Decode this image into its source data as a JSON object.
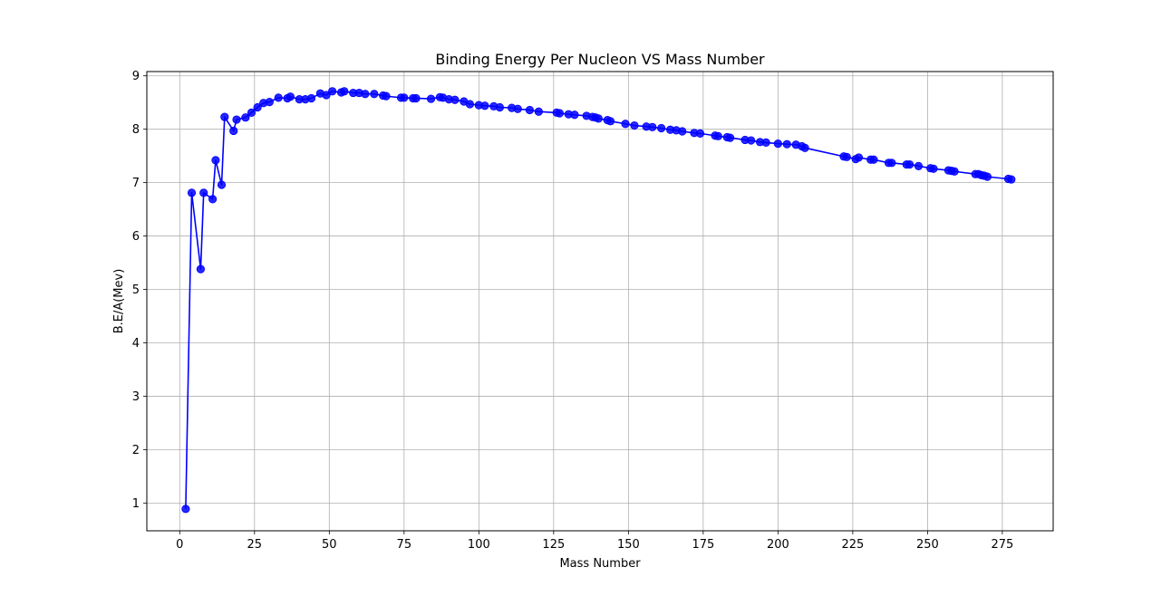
{
  "chart_data": {
    "type": "line",
    "title": "Binding Energy Per Nucleon VS Mass Number",
    "xlabel": "Mass Number",
    "ylabel": "B.E/A(Mev)",
    "xlim": [
      -11,
      292
    ],
    "ylim": [
      0.48,
      9.08
    ],
    "xticks": [
      0,
      25,
      50,
      75,
      100,
      125,
      150,
      175,
      200,
      225,
      250,
      275
    ],
    "yticks": [
      1,
      2,
      3,
      4,
      5,
      6,
      7,
      8,
      9
    ],
    "grid": true,
    "colors": {
      "series": "#0000ff",
      "grid": "#b0b0b0",
      "axes": "#000000"
    },
    "series": [
      {
        "marker": "circle",
        "x": [
          2,
          4,
          7,
          8,
          11,
          12,
          14,
          15,
          18,
          19,
          22,
          24,
          26,
          28,
          30,
          33,
          36,
          37,
          40,
          42,
          44,
          47,
          49,
          51,
          54,
          55,
          58,
          60,
          62,
          65,
          68,
          69,
          74,
          75,
          78,
          79,
          84,
          87,
          88,
          90,
          92,
          95,
          97,
          100,
          102,
          105,
          107,
          111,
          113,
          117,
          120,
          126,
          127,
          130,
          132,
          136,
          138,
          139,
          140,
          143,
          144,
          149,
          152,
          156,
          158,
          161,
          164,
          166,
          168,
          172,
          174,
          179,
          180,
          183,
          184,
          189,
          191,
          194,
          196,
          200,
          203,
          206,
          208,
          209,
          222,
          223,
          226,
          227,
          231,
          232,
          237,
          238,
          243,
          244,
          247,
          251,
          252,
          257,
          258,
          259,
          266,
          267,
          268,
          269,
          270,
          277,
          278
        ],
        "y": [
          0.89,
          6.81,
          5.38,
          6.81,
          6.69,
          7.42,
          6.96,
          8.23,
          7.97,
          8.18,
          8.22,
          8.31,
          8.41,
          8.49,
          8.51,
          8.59,
          8.58,
          8.61,
          8.56,
          8.56,
          8.58,
          8.67,
          8.64,
          8.71,
          8.69,
          8.71,
          8.68,
          8.68,
          8.66,
          8.66,
          8.63,
          8.62,
          8.59,
          8.59,
          8.58,
          8.58,
          8.57,
          8.6,
          8.59,
          8.56,
          8.55,
          8.52,
          8.47,
          8.45,
          8.44,
          8.43,
          8.41,
          8.4,
          8.38,
          8.36,
          8.33,
          8.31,
          8.3,
          8.28,
          8.27,
          8.25,
          8.23,
          8.22,
          8.2,
          8.17,
          8.15,
          8.1,
          8.07,
          8.05,
          8.04,
          8.02,
          7.99,
          7.98,
          7.96,
          7.93,
          7.92,
          7.88,
          7.87,
          7.85,
          7.84,
          7.8,
          7.79,
          7.76,
          7.75,
          7.73,
          7.72,
          7.71,
          7.68,
          7.65,
          7.49,
          7.48,
          7.44,
          7.47,
          7.43,
          7.43,
          7.37,
          7.37,
          7.34,
          7.34,
          7.31,
          7.27,
          7.26,
          7.23,
          7.22,
          7.21,
          7.16,
          7.16,
          7.14,
          7.13,
          7.11,
          7.07,
          7.06
        ]
      }
    ]
  }
}
